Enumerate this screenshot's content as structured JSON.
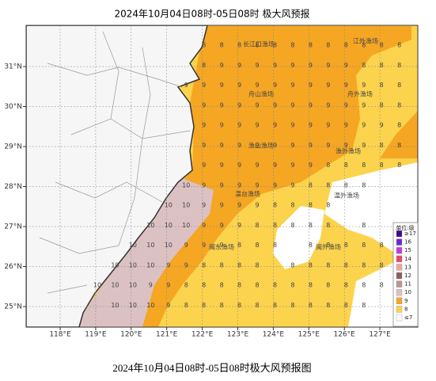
{
  "title": "2024年10月04日08时-05日08时 极大风预报",
  "caption": "2024年10月04日08时-05日08时极大风预报图",
  "xticks": [
    {
      "value": 118,
      "label": "118°E"
    },
    {
      "value": 119,
      "label": "119°E"
    },
    {
      "value": 120,
      "label": "120°E"
    },
    {
      "value": 121,
      "label": "121°E"
    },
    {
      "value": 122,
      "label": "122°E"
    },
    {
      "value": 123,
      "label": "123°E"
    },
    {
      "value": 124,
      "label": "124°E"
    },
    {
      "value": 125,
      "label": "125°E"
    },
    {
      "value": 126,
      "label": "126°E"
    },
    {
      "value": 127,
      "label": "127°E"
    }
  ],
  "yticks": [
    {
      "value": 25,
      "label": "25°N"
    },
    {
      "value": 26,
      "label": "26°N"
    },
    {
      "value": 27,
      "label": "27°N"
    },
    {
      "value": 28,
      "label": "28°N"
    },
    {
      "value": 29,
      "label": "29°N"
    },
    {
      "value": 30,
      "label": "30°N"
    },
    {
      "value": 31,
      "label": "31°N"
    }
  ],
  "areas": [
    "长江口渔场",
    "江外渔场",
    "舟山渔场",
    "舟外渔场",
    "渔山渔场",
    "渔外渔场",
    "温台渔场",
    "温外渔场",
    "闽东渔场",
    "闽外渔场"
  ],
  "legend": {
    "title": "单位:级",
    "items": [
      {
        "label": "≥17",
        "color": "#3d0a8c"
      },
      {
        "label": "16",
        "color": "#6a2bd6"
      },
      {
        "label": "15",
        "color": "#c13be3"
      },
      {
        "label": "14",
        "color": "#f0446a"
      },
      {
        "label": "13",
        "color": "#f3a39c"
      },
      {
        "label": "12",
        "color": "#8c5d5a"
      },
      {
        "label": "11",
        "color": "#b99594"
      },
      {
        "label": "10",
        "color": "#dcc1c3"
      },
      {
        "label": "9",
        "color": "#f5a623"
      },
      {
        "label": "8",
        "color": "#fcd34c"
      },
      {
        "label": "≤7",
        "color": "#ffffff"
      }
    ]
  },
  "grid": [
    [
      null,
      null,
      null,
      null,
      null,
      null,
      8,
      8,
      8,
      8,
      8,
      8,
      8,
      8,
      8,
      8,
      8,
      8
    ],
    [
      null,
      null,
      null,
      null,
      null,
      null,
      8,
      9,
      9,
      9,
      9,
      9,
      9,
      9,
      9,
      8,
      8,
      8
    ],
    [
      null,
      null,
      null,
      null,
      null,
      9,
      9,
      9,
      9,
      9,
      9,
      9,
      9,
      9,
      9,
      9,
      8,
      8
    ],
    [
      null,
      null,
      null,
      null,
      null,
      null,
      9,
      9,
      9,
      9,
      9,
      9,
      9,
      9,
      9,
      9,
      8,
      8
    ],
    [
      null,
      null,
      null,
      null,
      null,
      null,
      9,
      9,
      9,
      9,
      9,
      9,
      9,
      9,
      9,
      9,
      9,
      8
    ],
    [
      null,
      null,
      null,
      null,
      null,
      null,
      9,
      9,
      9,
      9,
      9,
      9,
      9,
      9,
      9,
      9,
      8,
      8
    ],
    [
      null,
      null,
      null,
      null,
      null,
      null,
      9,
      9,
      9,
      9,
      9,
      9,
      9,
      8,
      8,
      8,
      8,
      8
    ],
    [
      null,
      null,
      null,
      null,
      null,
      10,
      9,
      9,
      9,
      9,
      9,
      9,
      8,
      8,
      8,
      8,
      null,
      null
    ],
    [
      null,
      null,
      null,
      null,
      10,
      10,
      9,
      9,
      9,
      9,
      8,
      8,
      8,
      8,
      null,
      null,
      null,
      null
    ],
    [
      null,
      null,
      null,
      10,
      10,
      10,
      9,
      9,
      9,
      8,
      8,
      8,
      8,
      8,
      null,
      8,
      null,
      null
    ],
    [
      null,
      null,
      10,
      10,
      10,
      9,
      9,
      9,
      8,
      8,
      8,
      null,
      8,
      8,
      8,
      8,
      8,
      null
    ],
    [
      null,
      10,
      10,
      10,
      9,
      9,
      8,
      8,
      8,
      8,
      null,
      8,
      8,
      8,
      8,
      8,
      8,
      null
    ],
    [
      10,
      10,
      10,
      9,
      9,
      8,
      8,
      8,
      8,
      8,
      8,
      8,
      8,
      8,
      8,
      8,
      8,
      null
    ],
    [
      null,
      10,
      10,
      10,
      9,
      8,
      8,
      8,
      8,
      8,
      8,
      8,
      8,
      8,
      8,
      8,
      null,
      null
    ]
  ]
}
